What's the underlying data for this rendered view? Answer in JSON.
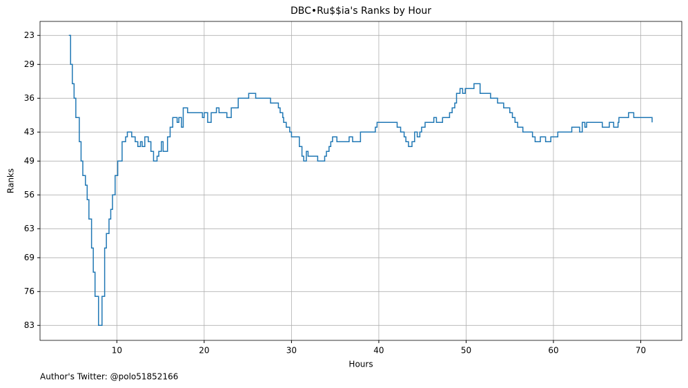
{
  "chart_data": {
    "type": "step",
    "title": "DBC•Ru$$ia's Ranks by Hour",
    "x_label": "Hours",
    "y_label": "Ranks",
    "footer": "Author's Twitter: @polo51852166",
    "x": [
      4.5,
      4.7,
      4.9,
      5.1,
      5.3,
      5.7,
      5.9,
      6.1,
      6.4,
      6.6,
      6.8,
      7.1,
      7.3,
      7.5,
      7.9,
      8.3,
      8.6,
      8.8,
      9.1,
      9.3,
      9.5,
      9.8,
      10.1,
      10.6,
      11.0,
      11.2,
      11.7,
      12.1,
      12.4,
      12.7,
      12.9,
      13.2,
      13.6,
      13.9,
      14.2,
      14.6,
      14.8,
      15.1,
      15.3,
      15.8,
      16.1,
      16.4,
      16.9,
      17.1,
      17.4,
      17.6,
      18.1,
      19.8,
      20.0,
      20.4,
      20.8,
      21.4,
      21.7,
      22.6,
      23.1,
      23.9,
      25.1,
      25.9,
      27.6,
      28.5,
      28.7,
      29.0,
      29.1,
      29.4,
      29.8,
      30.0,
      30.9,
      31.2,
      31.4,
      31.7,
      31.9,
      33.0,
      33.8,
      34.0,
      34.3,
      34.5,
      34.7,
      35.2,
      36.6,
      37.0,
      37.9,
      39.6,
      39.8,
      40.0,
      42.1,
      42.5,
      42.9,
      43.1,
      43.4,
      43.8,
      44.1,
      44.4,
      44.7,
      44.9,
      45.3,
      45.7,
      46.3,
      46.6,
      47.3,
      48.1,
      48.4,
      48.7,
      48.9,
      49.3,
      49.6,
      49.9,
      50.9,
      51.6,
      52.8,
      53.6,
      54.3,
      55.0,
      55.3,
      55.6,
      55.9,
      56.5,
      57.6,
      57.9,
      58.5,
      59.1,
      59.7,
      60.5,
      62.1,
      63.0,
      63.3,
      63.6,
      63.8,
      65.6,
      65.7,
      66.4,
      66.9,
      67.4,
      67.5,
      68.6,
      69.2,
      71.3
    ],
    "series": [
      {
        "name": "Ranks",
        "color": "#1f77b4",
        "values": [
          23,
          29,
          33,
          36,
          40,
          45,
          49,
          52,
          54,
          57,
          61,
          67,
          72,
          77,
          83,
          77,
          67,
          64,
          61,
          59,
          56,
          52,
          49,
          45,
          44,
          43,
          44,
          45,
          46,
          45,
          46,
          44,
          45,
          47,
          49,
          48,
          47,
          45,
          47,
          44,
          42,
          40,
          41,
          40,
          42,
          38,
          39,
          40,
          39,
          41,
          39,
          38,
          39,
          40,
          38,
          36,
          35,
          36,
          37,
          38,
          39,
          40,
          41,
          42,
          43,
          44,
          46,
          48,
          49,
          47,
          48,
          49,
          48,
          47,
          46,
          45,
          44,
          45,
          44,
          45,
          43,
          42,
          41,
          41,
          42,
          43,
          44,
          45,
          46,
          45,
          43,
          44,
          43,
          42,
          41,
          41,
          40,
          41,
          40,
          39,
          38,
          37,
          35,
          34,
          35,
          34,
          33,
          35,
          36,
          37,
          38,
          39,
          40,
          41,
          42,
          43,
          44,
          45,
          44,
          45,
          44,
          43,
          42,
          43,
          41,
          42,
          41,
          42,
          42,
          41,
          42,
          41,
          40,
          39,
          40,
          41
        ]
      }
    ],
    "xlim": [
      1.2,
      74.7
    ],
    "xticks": [
      10,
      20,
      30,
      40,
      50,
      60,
      70
    ],
    "ylim": [
      86.1,
      20.1
    ],
    "yticks": [
      23,
      29,
      36,
      43,
      49,
      56,
      63,
      69,
      76,
      83
    ],
    "grid": true
  }
}
